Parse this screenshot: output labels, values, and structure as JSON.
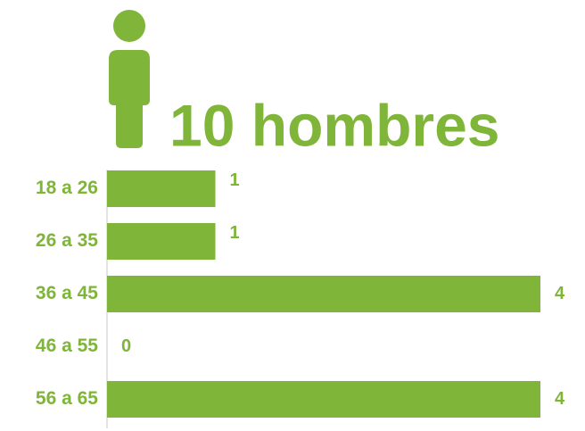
{
  "chart_data": {
    "type": "bar",
    "orientation": "horizontal",
    "title": "10 hombres",
    "categories": [
      "18 a 26",
      "26 a 35",
      "36 a 45",
      "46 a 55",
      "56 a 65"
    ],
    "values": [
      1,
      1,
      4,
      0,
      4
    ],
    "color": "#7fb539"
  }
}
